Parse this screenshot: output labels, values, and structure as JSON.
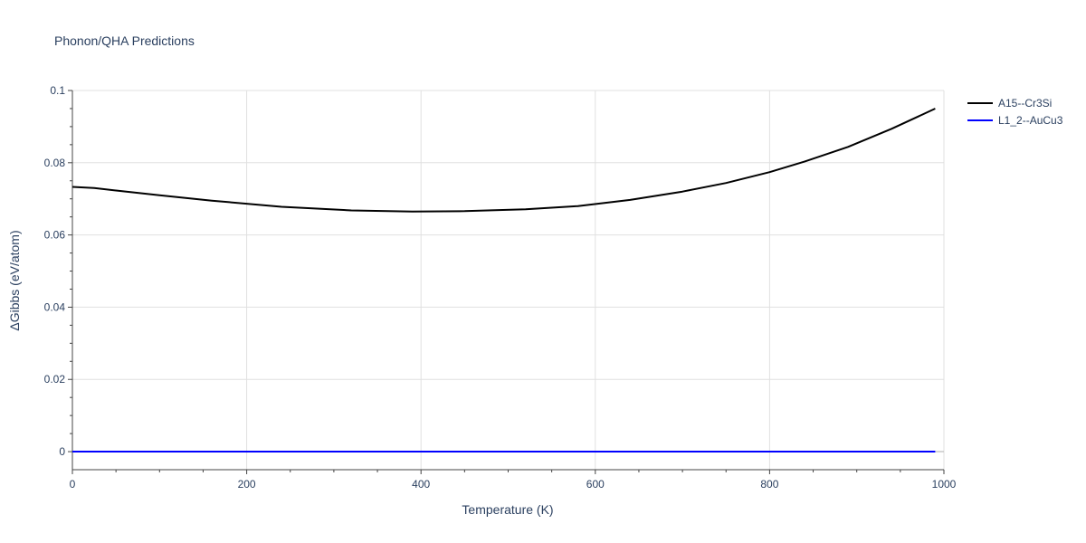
{
  "chart_data": {
    "type": "line",
    "title": "Phonon/QHA Predictions",
    "xlabel": "Temperature (K)",
    "ylabel": "ΔGibbs (eV/atom)",
    "xlim": [
      0,
      1000
    ],
    "ylim": [
      -0.005,
      0.1
    ],
    "x_ticks": [
      0,
      200,
      400,
      600,
      800,
      1000
    ],
    "x_tick_labels": [
      "0",
      "200",
      "400",
      "600",
      "800",
      "1000"
    ],
    "y_ticks": [
      0,
      0.02,
      0.04,
      0.06,
      0.08,
      0.1
    ],
    "y_tick_labels": [
      "0",
      "0.02",
      "0.04",
      "0.06",
      "0.08",
      "0.1"
    ],
    "grid": true,
    "legend_position": "top-right, outside plot",
    "series": [
      {
        "name": "A15--Cr3Si",
        "color": "#000000",
        "x": [
          0,
          25,
          50,
          100,
          160,
          240,
          320,
          390,
          450,
          520,
          580,
          640,
          700,
          750,
          800,
          840,
          890,
          940,
          990
        ],
        "y": [
          0.0733,
          0.073,
          0.0723,
          0.071,
          0.0695,
          0.0678,
          0.0668,
          0.0665,
          0.0666,
          0.0671,
          0.068,
          0.0697,
          0.072,
          0.0744,
          0.0774,
          0.0803,
          0.0844,
          0.0894,
          0.095
        ]
      },
      {
        "name": "L1_2--AuCu3",
        "color": "#0000ff",
        "x": [
          0,
          990
        ],
        "y": [
          0,
          0
        ]
      }
    ]
  }
}
